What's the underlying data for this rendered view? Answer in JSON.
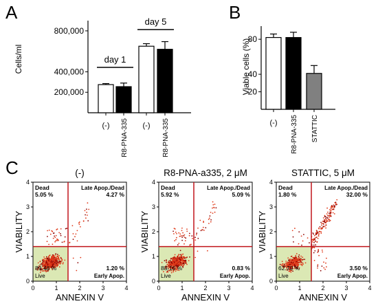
{
  "panels": {
    "A": "A",
    "B": "B",
    "C": "C"
  },
  "chart_data": [
    {
      "panel": "A",
      "type": "bar",
      "ylabel": "Cells/ml",
      "yticks": [
        "800,000",
        "400,000",
        "200,000"
      ],
      "ytick_values": [
        800000,
        400000,
        200000
      ],
      "ylim": [
        0,
        900000
      ],
      "categories": [
        "(-)",
        "R8-PNA-335",
        "(-)",
        "R8-PNA-335"
      ],
      "groups": [
        {
          "label": "day 1",
          "bars": [
            0,
            1
          ]
        },
        {
          "label": "day 5",
          "bars": [
            2,
            3
          ]
        }
      ],
      "values": [
        275000,
        255000,
        650000,
        620000
      ],
      "errors": [
        10000,
        35000,
        25000,
        75000
      ],
      "colors": [
        "#ffffff",
        "#000000",
        "#ffffff",
        "#000000"
      ]
    },
    {
      "panel": "B",
      "type": "bar",
      "ylabel": "Viable cells (%)",
      "yticks": [
        "80",
        "40",
        "20"
      ],
      "ytick_values": [
        80,
        40,
        20
      ],
      "ylim": [
        0,
        95
      ],
      "categories": [
        "(-)",
        "R8-PNA-335",
        "STATTIC"
      ],
      "values": [
        82,
        82,
        41
      ],
      "errors": [
        4,
        6,
        9
      ],
      "colors": [
        "#ffffff",
        "#000000",
        "#808080"
      ]
    },
    {
      "panel": "C",
      "type": "scatter",
      "xlabel": "ANNEXIN V",
      "ylabel": "VIABILITY",
      "xlim": [
        0,
        4
      ],
      "ylim": [
        0,
        4
      ],
      "ticks": [
        "0",
        "1",
        "2",
        "3",
        "4"
      ],
      "gate": {
        "x": 1.5,
        "y": 1.4
      },
      "quadrant_labels": {
        "dead": "Dead",
        "late": "Late Apop./Dead",
        "early": "Early Apop.",
        "live": "Live"
      },
      "plots": [
        {
          "title": "(-)",
          "dead": "5.05 %",
          "late": "4.27 %",
          "early": "1.20 %",
          "live_pct": "89.48 %"
        },
        {
          "title": "R8-PNA-a335, 2 μM",
          "dead": "5.92 %",
          "late": "5.09 %",
          "early": "0.83 %",
          "live_pct": "88.16 %"
        },
        {
          "title": "STATTIC, 5 μM",
          "dead": "1.80 %",
          "late": "32.00 %",
          "early": "3.50 %",
          "live_pct": "62.70 %"
        }
      ]
    }
  ]
}
